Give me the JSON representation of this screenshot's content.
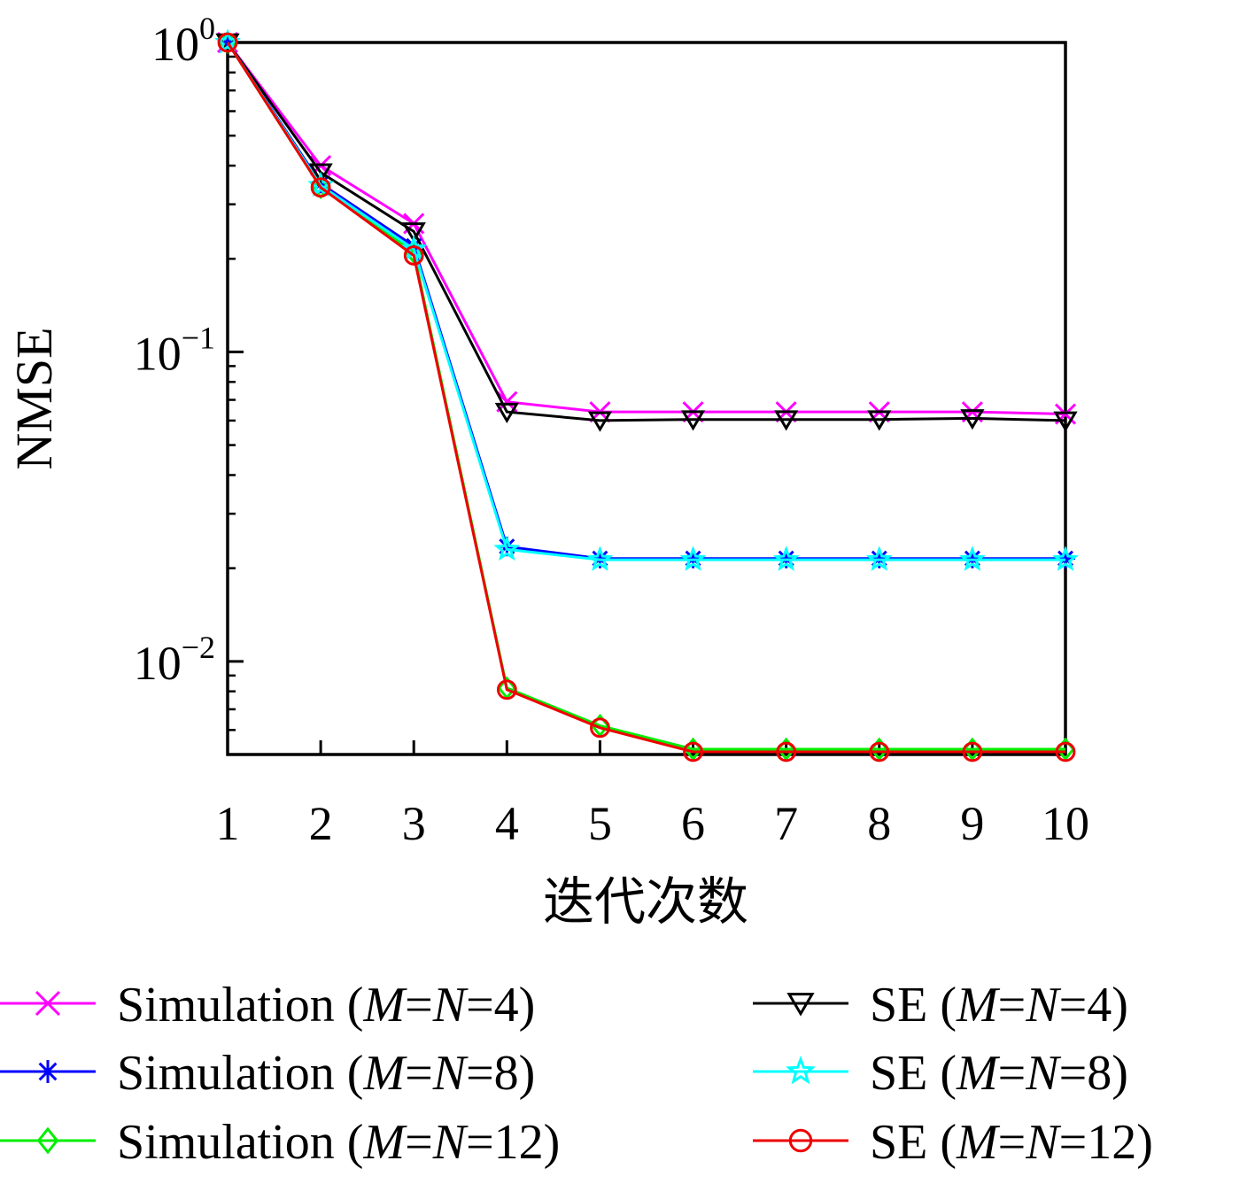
{
  "chart_data": {
    "type": "line",
    "xlabel": "迭代次数",
    "ylabel": "NMSE",
    "yscale": "log",
    "xlim": [
      1,
      10
    ],
    "ylim": [
      0.005,
      1
    ],
    "x": [
      1,
      2,
      3,
      4,
      5,
      6,
      7,
      8,
      9,
      10
    ],
    "x_ticks": [
      "1",
      "2",
      "3",
      "4",
      "5",
      "6",
      "7",
      "8",
      "9",
      "10"
    ],
    "y_ticks": [
      {
        "value": 1,
        "base": "10",
        "exp": "0"
      },
      {
        "value": 0.1,
        "base": "10",
        "exp": "−1"
      },
      {
        "value": 0.01,
        "base": "10",
        "exp": "−2"
      }
    ],
    "grid": false,
    "legend_position": "bottom",
    "series": [
      {
        "name": "Simulation (M=N=4)",
        "prefix": "Simulation (",
        "param": "M",
        "eq1": "=",
        "param2": "N",
        "eq2": "=",
        "num": "4",
        "suffix": ")",
        "color": "#ff00ff",
        "marker": "x",
        "values": [
          1.0,
          0.4,
          0.26,
          0.069,
          0.064,
          0.064,
          0.064,
          0.064,
          0.064,
          0.063
        ]
      },
      {
        "name": "Simulation (M=N=8)",
        "prefix": "Simulation (",
        "param": "M",
        "eq1": "=",
        "param2": "N",
        "eq2": "=",
        "num": "8",
        "suffix": ")",
        "color": "#0000ff",
        "marker": "asterisk",
        "values": [
          1.0,
          0.35,
          0.22,
          0.0235,
          0.0215,
          0.0215,
          0.0215,
          0.0215,
          0.0215,
          0.0215
        ]
      },
      {
        "name": "Simulation (M=N=12)",
        "prefix": "Simulation (",
        "param": "M",
        "eq1": "=",
        "param2": "N",
        "eq2": "=",
        "num": "12",
        "suffix": ")",
        "color": "#00ee00",
        "marker": "diamond",
        "values": [
          1.0,
          0.34,
          0.21,
          0.0082,
          0.0062,
          0.0052,
          0.0052,
          0.0052,
          0.0052,
          0.0052
        ]
      },
      {
        "name": "SE (M=N=4)",
        "prefix": "SE (",
        "param": "M",
        "eq1": "=",
        "param2": "N",
        "eq2": "=",
        "num": "4",
        "suffix": ")",
        "color": "#000000",
        "marker": "triangle-down",
        "values": [
          1.0,
          0.38,
          0.245,
          0.064,
          0.06,
          0.0605,
          0.0605,
          0.0605,
          0.061,
          0.06
        ]
      },
      {
        "name": "SE (M=N=8)",
        "prefix": "SE (",
        "param": "M",
        "eq1": "=",
        "param2": "N",
        "eq2": "=",
        "num": "8",
        "suffix": ")",
        "color": "#00ffff",
        "marker": "star",
        "values": [
          1.0,
          0.345,
          0.215,
          0.023,
          0.0213,
          0.0213,
          0.0213,
          0.0213,
          0.0213,
          0.0213
        ]
      },
      {
        "name": "SE (M=N=12)",
        "prefix": "SE (",
        "param": "M",
        "eq1": "=",
        "param2": "N",
        "eq2": "=",
        "num": "12",
        "suffix": ")",
        "color": "#ee0000",
        "marker": "circle",
        "values": [
          1.0,
          0.34,
          0.205,
          0.0081,
          0.0061,
          0.0051,
          0.0051,
          0.0051,
          0.0051,
          0.0051
        ]
      }
    ]
  }
}
